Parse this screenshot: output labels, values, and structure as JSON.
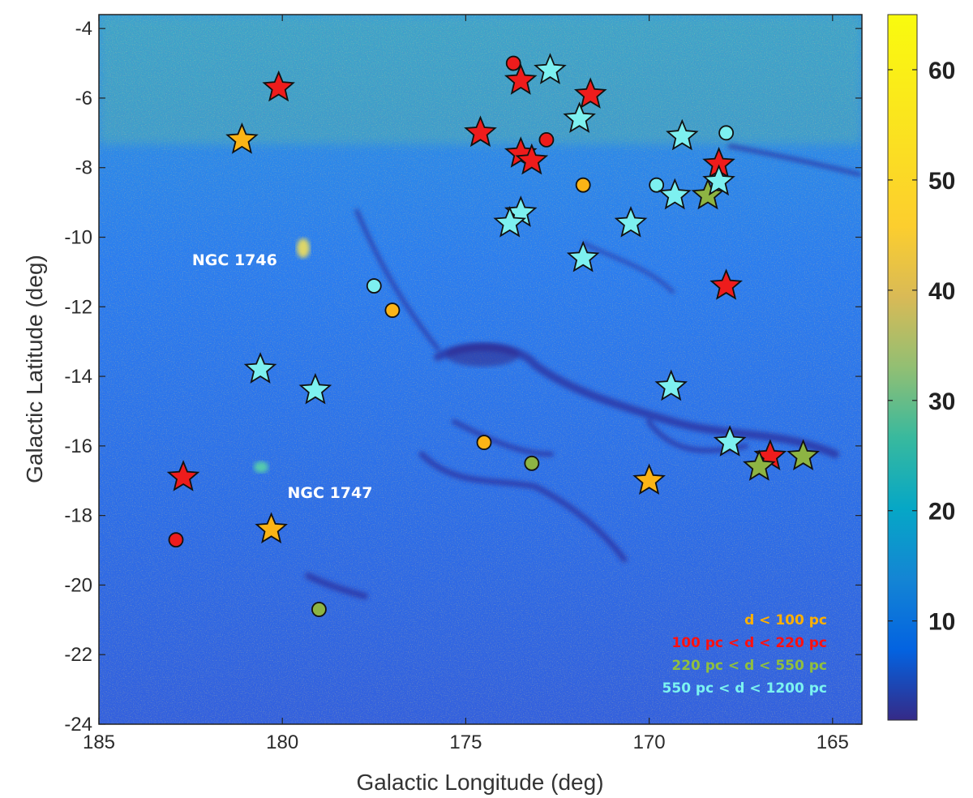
{
  "chart_data": {
    "type": "scatter",
    "title": "",
    "xlabel": "Galactic Longitude (deg)",
    "ylabel": "Galactic Latitude (deg)",
    "xlim": [
      185,
      164.2
    ],
    "ylim": [
      -24,
      -3.6
    ],
    "x_reversed": true,
    "x_ticks": [
      185,
      180,
      175,
      170,
      165
    ],
    "y_ticks": [
      -4,
      -6,
      -8,
      -10,
      -12,
      -14,
      -16,
      -18,
      -20,
      -22,
      -24
    ],
    "background": "sky intensity map",
    "colorbar": {
      "ticks": [
        10,
        20,
        30,
        40,
        50,
        60
      ],
      "range": [
        1,
        65
      ],
      "colormap": "parula"
    },
    "annotations": [
      {
        "text": "NGC 1746",
        "x": 181.3,
        "y": -10.8
      },
      {
        "text": "NGC 1747",
        "x": 178.7,
        "y": -17.5
      }
    ],
    "legend": {
      "placement": "bottom-right",
      "entries": [
        {
          "label": "d < 100 pc",
          "color": "#ffb000"
        },
        {
          "label": "100 pc < d < 220 pc",
          "color": "#ff1010"
        },
        {
          "label": "220 pc < d < 550 pc",
          "color": "#8fbf3f"
        },
        {
          "label": "550 pc < d < 1200 pc",
          "color": "#7cf3f0"
        }
      ]
    },
    "series": [
      {
        "color": "#fbb416",
        "stars": [
          [
            181.1,
            -7.2
          ],
          [
            180.3,
            -18.4
          ],
          [
            170.0,
            -17.0
          ]
        ],
        "circles": [
          [
            177.0,
            -12.1
          ],
          [
            174.5,
            -15.9
          ],
          [
            171.8,
            -8.5
          ]
        ]
      },
      {
        "color": "#ee1c1c",
        "stars": [
          [
            180.1,
            -5.7
          ],
          [
            182.7,
            -16.9
          ],
          [
            174.6,
            -7.0
          ],
          [
            173.5,
            -5.5
          ],
          [
            173.5,
            -7.6
          ],
          [
            173.2,
            -7.8
          ],
          [
            171.6,
            -5.9
          ],
          [
            168.1,
            -7.9
          ],
          [
            167.9,
            -11.4
          ],
          [
            166.7,
            -16.3
          ]
        ],
        "circles": [
          [
            173.7,
            -5.0
          ],
          [
            172.8,
            -7.2
          ],
          [
            182.9,
            -18.7
          ]
        ]
      },
      {
        "color": "#8db443",
        "stars": [
          [
            168.4,
            -8.8
          ],
          [
            167.0,
            -16.6
          ],
          [
            165.8,
            -16.3
          ]
        ],
        "circles": [
          [
            173.2,
            -16.5
          ],
          [
            179.0,
            -20.7
          ]
        ]
      },
      {
        "color": "#7df0f0",
        "stars": [
          [
            172.7,
            -5.2
          ],
          [
            171.9,
            -6.6
          ],
          [
            169.1,
            -7.1
          ],
          [
            168.1,
            -8.4
          ],
          [
            169.3,
            -8.8
          ],
          [
            173.5,
            -9.3
          ],
          [
            173.8,
            -9.6
          ],
          [
            170.5,
            -9.6
          ],
          [
            171.8,
            -10.6
          ],
          [
            180.6,
            -13.8
          ],
          [
            179.1,
            -14.4
          ],
          [
            169.4,
            -14.3
          ],
          [
            167.8,
            -15.9
          ]
        ],
        "circles": [
          [
            167.9,
            -7.0
          ],
          [
            169.8,
            -8.5
          ],
          [
            177.5,
            -11.4
          ]
        ]
      }
    ]
  }
}
